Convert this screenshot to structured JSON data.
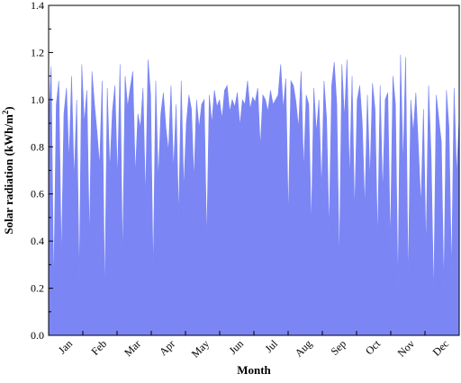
{
  "chart_data": {
    "type": "area",
    "title": "",
    "xlabel": "Month",
    "ylabel": "Solar radiation (kWh/m²)",
    "ylabel_parts": {
      "base": "Solar radiation (kWh/m",
      "sup": "2",
      "tail": ")"
    },
    "ylim": [
      0,
      1.4
    ],
    "y_ticks": [
      "0.0",
      "0.2",
      "0.4",
      "0.6",
      "0.8",
      "1.0",
      "1.2",
      "1.4"
    ],
    "x_ticks": [
      "Jan",
      "Feb",
      "Mar",
      "Apr",
      "May",
      "Jun",
      "Jul",
      "Aug",
      "Sep",
      "Oct",
      "Nov",
      "Dec"
    ],
    "grid": false,
    "legend": "none",
    "fill_color": "#7b86f4",
    "series": [
      {
        "values": [
          0.91,
          1.14,
          0.2,
          0.98,
          1.08,
          0.32,
          0.94,
          1.05,
          0.74,
          1.1,
          0.66,
          1.0,
          0.24,
          1.15,
          0.9,
          1.04,
          0.4,
          1.12,
          0.98,
          0.86,
          0.72,
          1.08,
          0.16,
          1.05,
          0.7,
          0.95,
          1.06,
          0.66,
          1.15,
          0.32,
          1.1,
          0.97,
          1.05,
          1.12,
          0.68,
          0.94,
          0.88,
          1.05,
          0.58,
          1.17,
          1.02,
          0.26,
          1.08,
          0.66,
          0.94,
          1.03,
          0.88,
          0.78,
          1.06,
          0.7,
          0.98,
          0.5,
          1.08,
          0.62,
          0.9,
          1.02,
          0.96,
          0.66,
          1.0,
          0.88,
          0.98,
          1.0,
          0.4,
          1.02,
          0.9,
          1.04,
          0.97,
          1.0,
          0.92,
          1.04,
          1.06,
          0.95,
          1.0,
          0.97,
          1.03,
          0.89,
          1.0,
          0.98,
          1.08,
          0.96,
          1.01,
          0.99,
          1.05,
          0.8,
          1.02,
          1.0,
          0.95,
          1.04,
          0.98,
          1.0,
          1.02,
          1.15,
          0.96,
          1.09,
          0.5,
          1.08,
          1.06,
          0.99,
          0.88,
          1.12,
          0.7,
          1.02,
          0.98,
          0.46,
          1.05,
          0.86,
          1.0,
          0.62,
          1.08,
          0.92,
          0.44,
          1.06,
          1.16,
          0.98,
          0.3,
          1.15,
          0.92,
          1.17,
          0.66,
          1.1,
          0.52,
          1.0,
          1.06,
          0.9,
          0.54,
          1.02,
          0.66,
          1.07,
          0.96,
          0.4,
          1.06,
          0.6,
          1.0,
          1.03,
          0.38,
          1.1,
          0.98,
          0.2,
          1.19,
          0.72,
          1.18,
          0.22,
          1.0,
          0.86,
          1.03,
          0.8,
          0.55,
          0.96,
          0.36,
          1.06,
          0.76,
          0.16,
          1.02,
          0.92,
          0.82,
          0.2,
          1.04,
          0.88,
          0.26,
          1.05,
          0.68,
          0.92
        ]
      }
    ]
  }
}
